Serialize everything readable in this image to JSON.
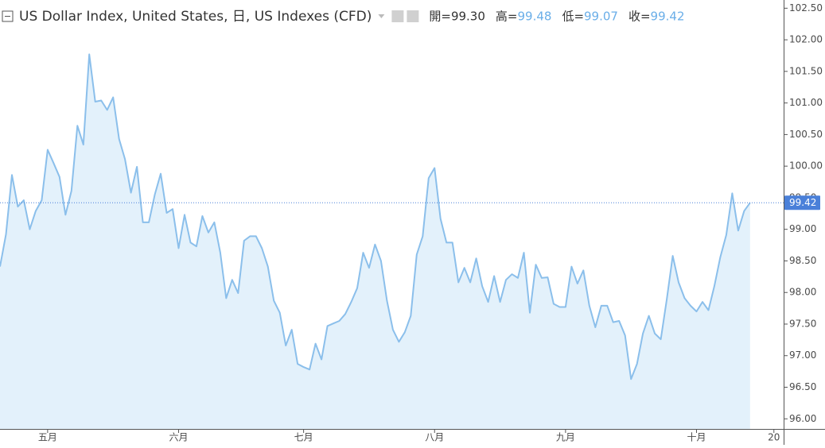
{
  "chart_data": {
    "type": "area",
    "title": "US Dollar Index, United States, 日, US Indexes (CFD)",
    "ohlc": [
      {
        "key": "開=",
        "value": "99.30"
      },
      {
        "key": "高=",
        "value": "99.48"
      },
      {
        "key": "低=",
        "value": "99.07"
      },
      {
        "key": "收=",
        "value": "99.42"
      }
    ],
    "color": "#8bbfeb",
    "fill": "#e3f1fb",
    "current_value": 99.42,
    "x": [
      0,
      1,
      2,
      3,
      4,
      5,
      6,
      7,
      8,
      9,
      10,
      11,
      12,
      13,
      14,
      15,
      16,
      17,
      18,
      19,
      20,
      21,
      22,
      23,
      24,
      25,
      26,
      27,
      28,
      29,
      30,
      31,
      32,
      33,
      34,
      35,
      36,
      37,
      38,
      39,
      40,
      41,
      42,
      43,
      44,
      45,
      46,
      47,
      48,
      49,
      50,
      51,
      52,
      53,
      54,
      55,
      56,
      57,
      58,
      59,
      60,
      61,
      62,
      63,
      64,
      65,
      66,
      67,
      68,
      69,
      70,
      71,
      72,
      73,
      74,
      75,
      76,
      77,
      78,
      79,
      80,
      81,
      82,
      83,
      84,
      85,
      86,
      87,
      88,
      89,
      90,
      91,
      92,
      93,
      94,
      95,
      96,
      97,
      98,
      99,
      100,
      101,
      102,
      103,
      104,
      105,
      106,
      107,
      108,
      109,
      110,
      111,
      112,
      113,
      114,
      115,
      116,
      117,
      118,
      119,
      120,
      121,
      122,
      123,
      124,
      125,
      126
    ],
    "values": [
      98.41,
      98.92,
      99.86,
      99.36,
      99.46,
      99.0,
      99.29,
      99.46,
      100.26,
      100.05,
      99.83,
      99.23,
      99.61,
      100.64,
      100.34,
      101.77,
      101.02,
      101.04,
      100.89,
      101.09,
      100.43,
      100.11,
      99.58,
      99.99,
      99.11,
      99.11,
      99.55,
      99.88,
      99.26,
      99.32,
      98.7,
      99.23,
      98.79,
      98.73,
      99.21,
      98.95,
      99.11,
      98.63,
      97.91,
      98.2,
      97.99,
      98.82,
      98.89,
      98.89,
      98.7,
      98.41,
      97.87,
      97.68,
      97.16,
      97.41,
      96.87,
      96.82,
      96.78,
      97.19,
      96.94,
      97.47,
      97.51,
      97.55,
      97.66,
      97.85,
      98.07,
      98.63,
      98.39,
      98.76,
      98.5,
      97.87,
      97.41,
      97.22,
      97.37,
      97.63,
      98.6,
      98.89,
      99.81,
      99.97,
      99.17,
      98.79,
      98.79,
      98.16,
      98.39,
      98.16,
      98.54,
      98.1,
      97.85,
      98.26,
      97.85,
      98.2,
      98.29,
      98.23,
      98.63,
      97.68,
      98.44,
      98.23,
      98.24,
      97.82,
      97.77,
      97.77,
      98.41,
      98.14,
      98.35,
      97.79,
      97.45,
      97.79,
      97.79,
      97.53,
      97.55,
      97.32,
      96.63,
      96.87,
      97.35,
      97.63,
      97.35,
      97.26,
      97.89,
      98.58,
      98.16,
      97.91,
      97.79,
      97.7,
      97.85,
      97.72,
      98.1,
      98.56,
      98.91,
      99.57,
      98.98,
      99.29,
      99.42
    ],
    "xlim": [
      0,
      131.3
    ],
    "ylim": [
      95.84,
      102.63
    ],
    "xticks": [
      {
        "value": 8,
        "label": "五月"
      },
      {
        "value": 30,
        "label": "六月"
      },
      {
        "value": 51,
        "label": "七月"
      },
      {
        "value": 73,
        "label": "八月"
      },
      {
        "value": 95,
        "label": "九月"
      },
      {
        "value": 117,
        "label": "十月"
      },
      {
        "value": 130,
        "label": "20"
      }
    ],
    "yticks": [
      {
        "value": 96.0,
        "label": "96.00"
      },
      {
        "value": 96.5,
        "label": "96.50"
      },
      {
        "value": 97.0,
        "label": "97.00"
      },
      {
        "value": 97.5,
        "label": "97.50"
      },
      {
        "value": 98.0,
        "label": "98.00"
      },
      {
        "value": 98.5,
        "label": "98.50"
      },
      {
        "value": 99.0,
        "label": "99.00"
      },
      {
        "value": 99.5,
        "label": "99.50"
      },
      {
        "value": 100.0,
        "label": "100.00"
      },
      {
        "value": 100.5,
        "label": "100.50"
      },
      {
        "value": 101.0,
        "label": "101.00"
      },
      {
        "value": 101.5,
        "label": "101.50"
      },
      {
        "value": 102.0,
        "label": "102.00"
      },
      {
        "value": 102.5,
        "label": "102.50"
      }
    ]
  }
}
